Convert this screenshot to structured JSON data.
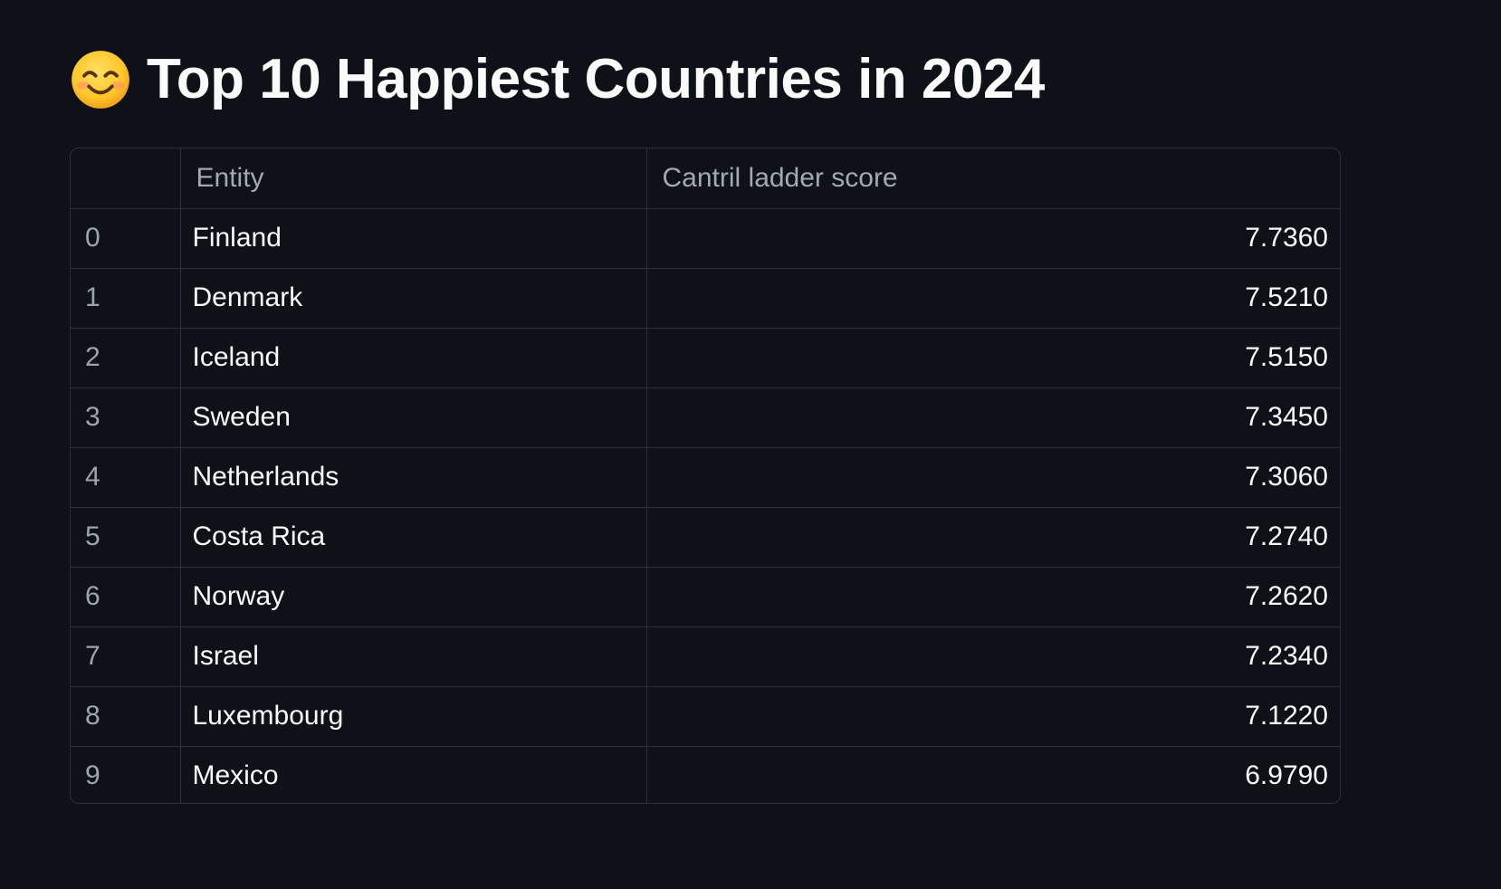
{
  "header": {
    "title": "Top 10 Happiest Countries in 2024",
    "emoji_icon": "smiling-face-icon"
  },
  "table": {
    "columns": [
      "",
      "Entity",
      "Cantril ladder score"
    ],
    "rows": [
      {
        "index": "0",
        "entity": "Finland",
        "score": "7.7360"
      },
      {
        "index": "1",
        "entity": "Denmark",
        "score": "7.5210"
      },
      {
        "index": "2",
        "entity": "Iceland",
        "score": "7.5150"
      },
      {
        "index": "3",
        "entity": "Sweden",
        "score": "7.3450"
      },
      {
        "index": "4",
        "entity": "Netherlands",
        "score": "7.3060"
      },
      {
        "index": "5",
        "entity": "Costa Rica",
        "score": "7.2740"
      },
      {
        "index": "6",
        "entity": "Norway",
        "score": "7.2620"
      },
      {
        "index": "7",
        "entity": "Israel",
        "score": "7.2340"
      },
      {
        "index": "8",
        "entity": "Luxembourg",
        "score": "7.1220"
      },
      {
        "index": "9",
        "entity": "Mexico",
        "score": "6.9790"
      }
    ]
  },
  "colors": {
    "background": "#0e1117",
    "text": "#fafafa",
    "muted_text": "#a3a8b4",
    "border": "#2c2f37"
  }
}
